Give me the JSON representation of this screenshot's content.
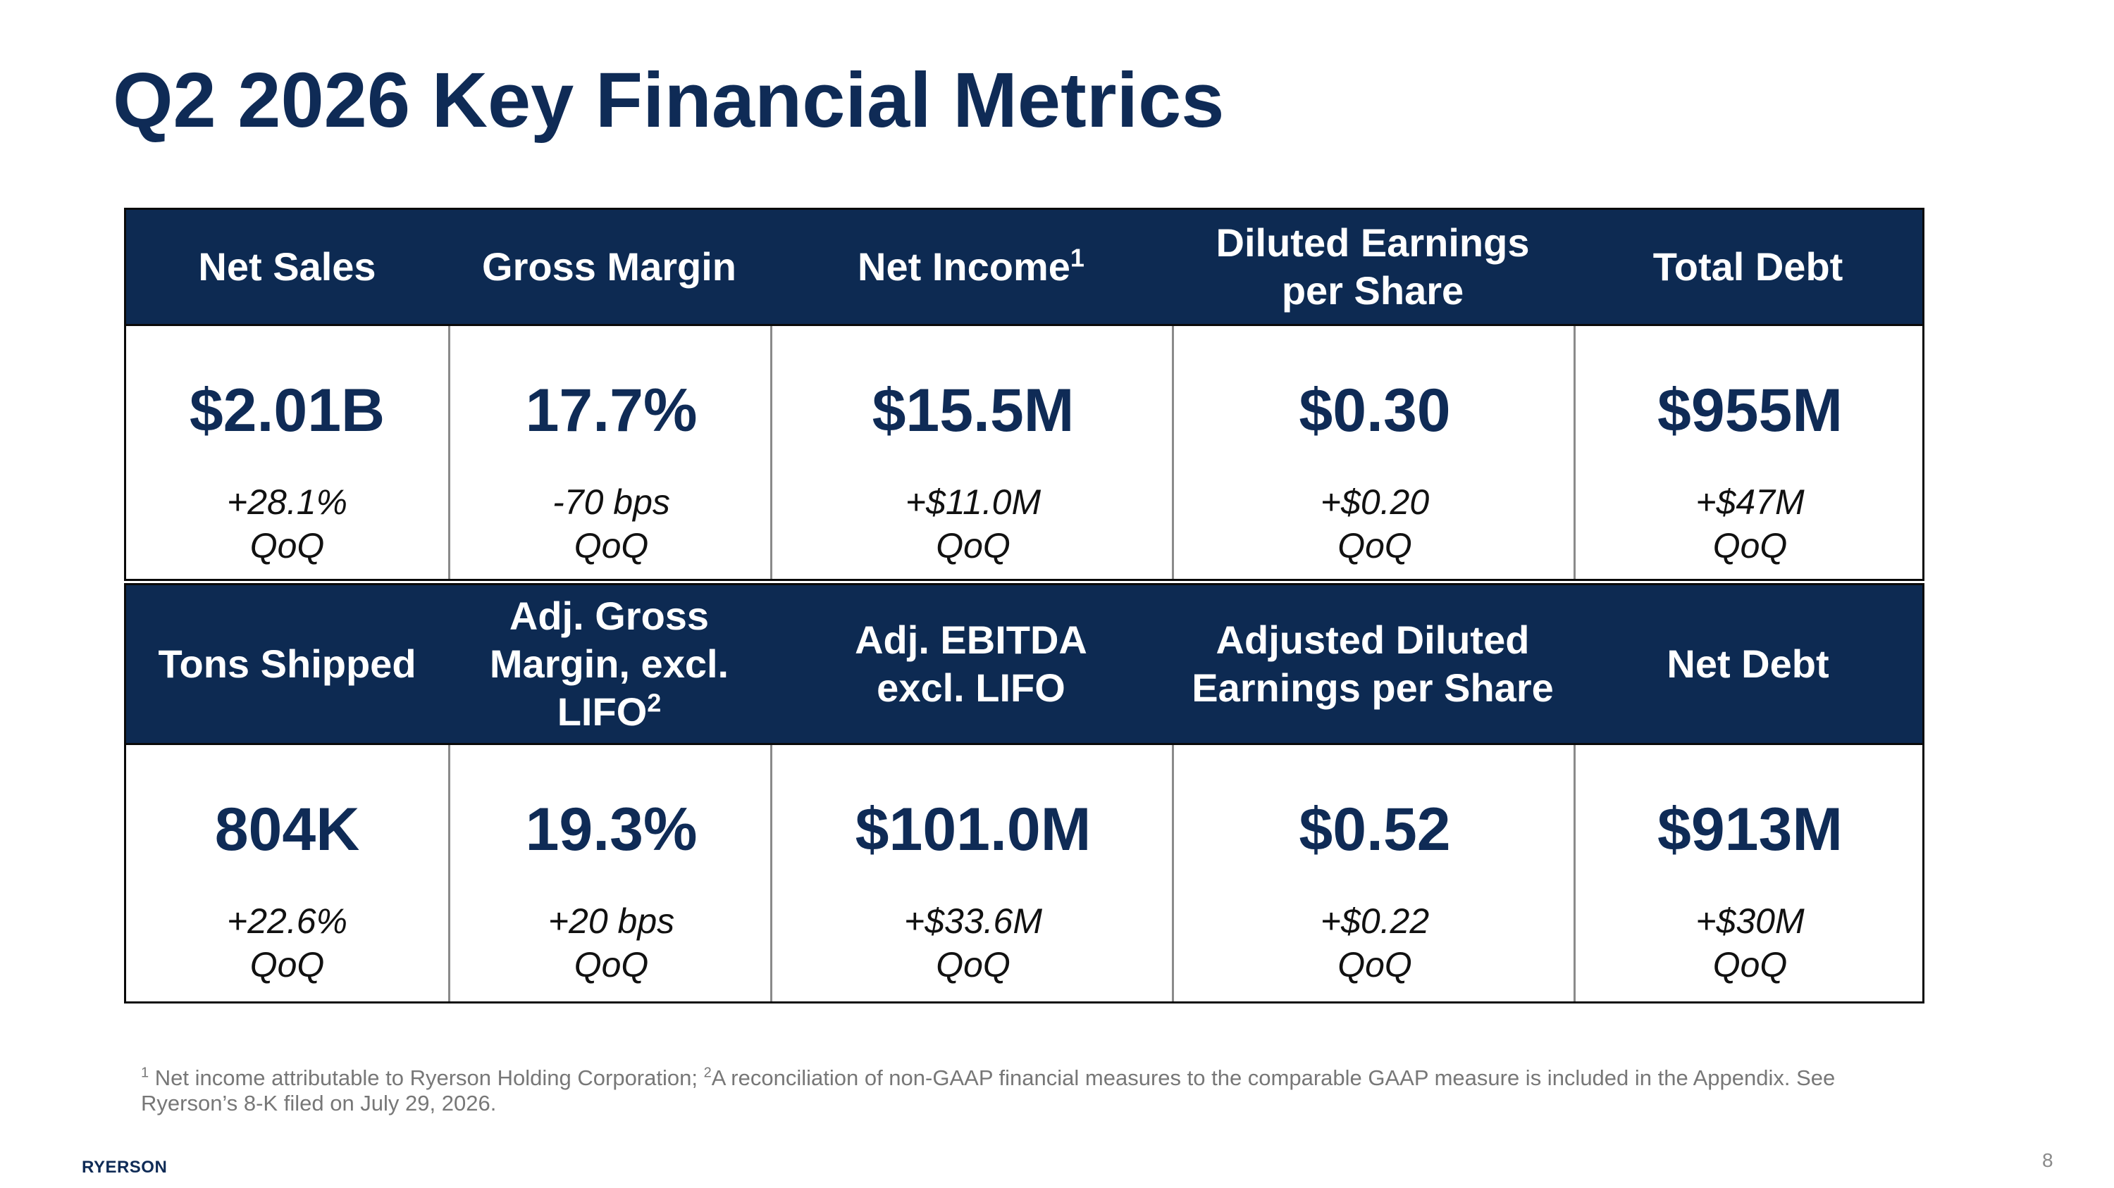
{
  "title": "Q2 2026 Key Financial Metrics",
  "rows": [
    {
      "headers": [
        {
          "label": "Net Sales",
          "sup": ""
        },
        {
          "label": "Gross Margin",
          "sup": ""
        },
        {
          "label": "Net Income",
          "sup": "1"
        },
        {
          "label": "Diluted Earnings per Share",
          "sup": ""
        },
        {
          "label": "Total Debt",
          "sup": ""
        }
      ],
      "values": [
        {
          "value": "$2.01B",
          "change": "+28.1%",
          "period": "QoQ"
        },
        {
          "value": "17.7%",
          "change": "-70 bps",
          "period": "QoQ"
        },
        {
          "value": "$15.5M",
          "change": "+$11.0M",
          "period": "QoQ"
        },
        {
          "value": "$0.30",
          "change": "+$0.20",
          "period": "QoQ"
        },
        {
          "value": "$955M",
          "change": "+$47M",
          "period": "QoQ"
        }
      ]
    },
    {
      "headers": [
        {
          "label": "Tons Shipped",
          "sup": ""
        },
        {
          "label": "Adj. Gross Margin, excl. LIFO",
          "sup": "2"
        },
        {
          "label": "Adj. EBITDA excl. LIFO",
          "sup": ""
        },
        {
          "label": "Adjusted Diluted Earnings per Share",
          "sup": ""
        },
        {
          "label": "Net Debt",
          "sup": ""
        }
      ],
      "values": [
        {
          "value": "804K",
          "change": "+22.6%",
          "period": "QoQ"
        },
        {
          "value": "19.3%",
          "change": "+20 bps",
          "period": "QoQ"
        },
        {
          "value": "$101.0M",
          "change": "+$33.6M",
          "period": "QoQ"
        },
        {
          "value": "$0.52",
          "change": "+$0.22",
          "period": "QoQ"
        },
        {
          "value": "$913M",
          "change": "+$30M",
          "period": "QoQ"
        }
      ]
    }
  ],
  "footnote": {
    "sup1": "1",
    "text1": " Net income attributable to Ryerson Holding Corporation; ",
    "sup2": "2",
    "text2": "A reconciliation of non-GAAP financial measures to the comparable GAAP measure is included in the Appendix. See Ryerson’s 8-K filed on July 29, 2026."
  },
  "brand": "RYERSON",
  "page_number": "8"
}
